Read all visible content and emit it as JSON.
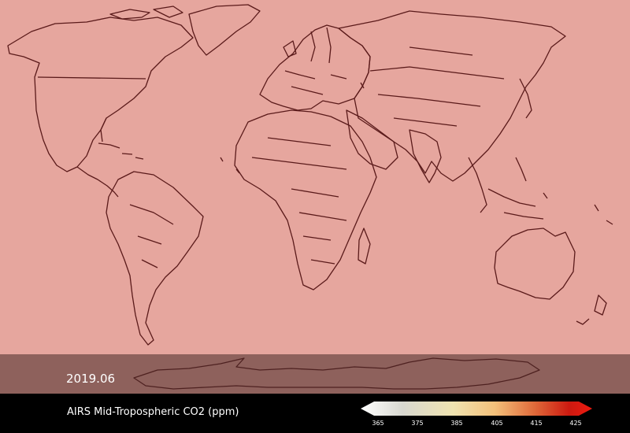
{
  "date": "2019.06",
  "product_title": "AIRS Mid-Tropospheric CO2 (ppm)",
  "colors": {
    "map_fill": "#e6a69e",
    "coastline": "#5a1a1a",
    "bar_background": "#000000"
  },
  "colorbar": {
    "ticks": [
      "365",
      "375",
      "385",
      "405",
      "415",
      "425"
    ],
    "gradient_stops": [
      "#ffffff",
      "#d8d8d0",
      "#efe3b0",
      "#f3c07a",
      "#e06a3a",
      "#cc1a10",
      "#ee1a10"
    ]
  }
}
